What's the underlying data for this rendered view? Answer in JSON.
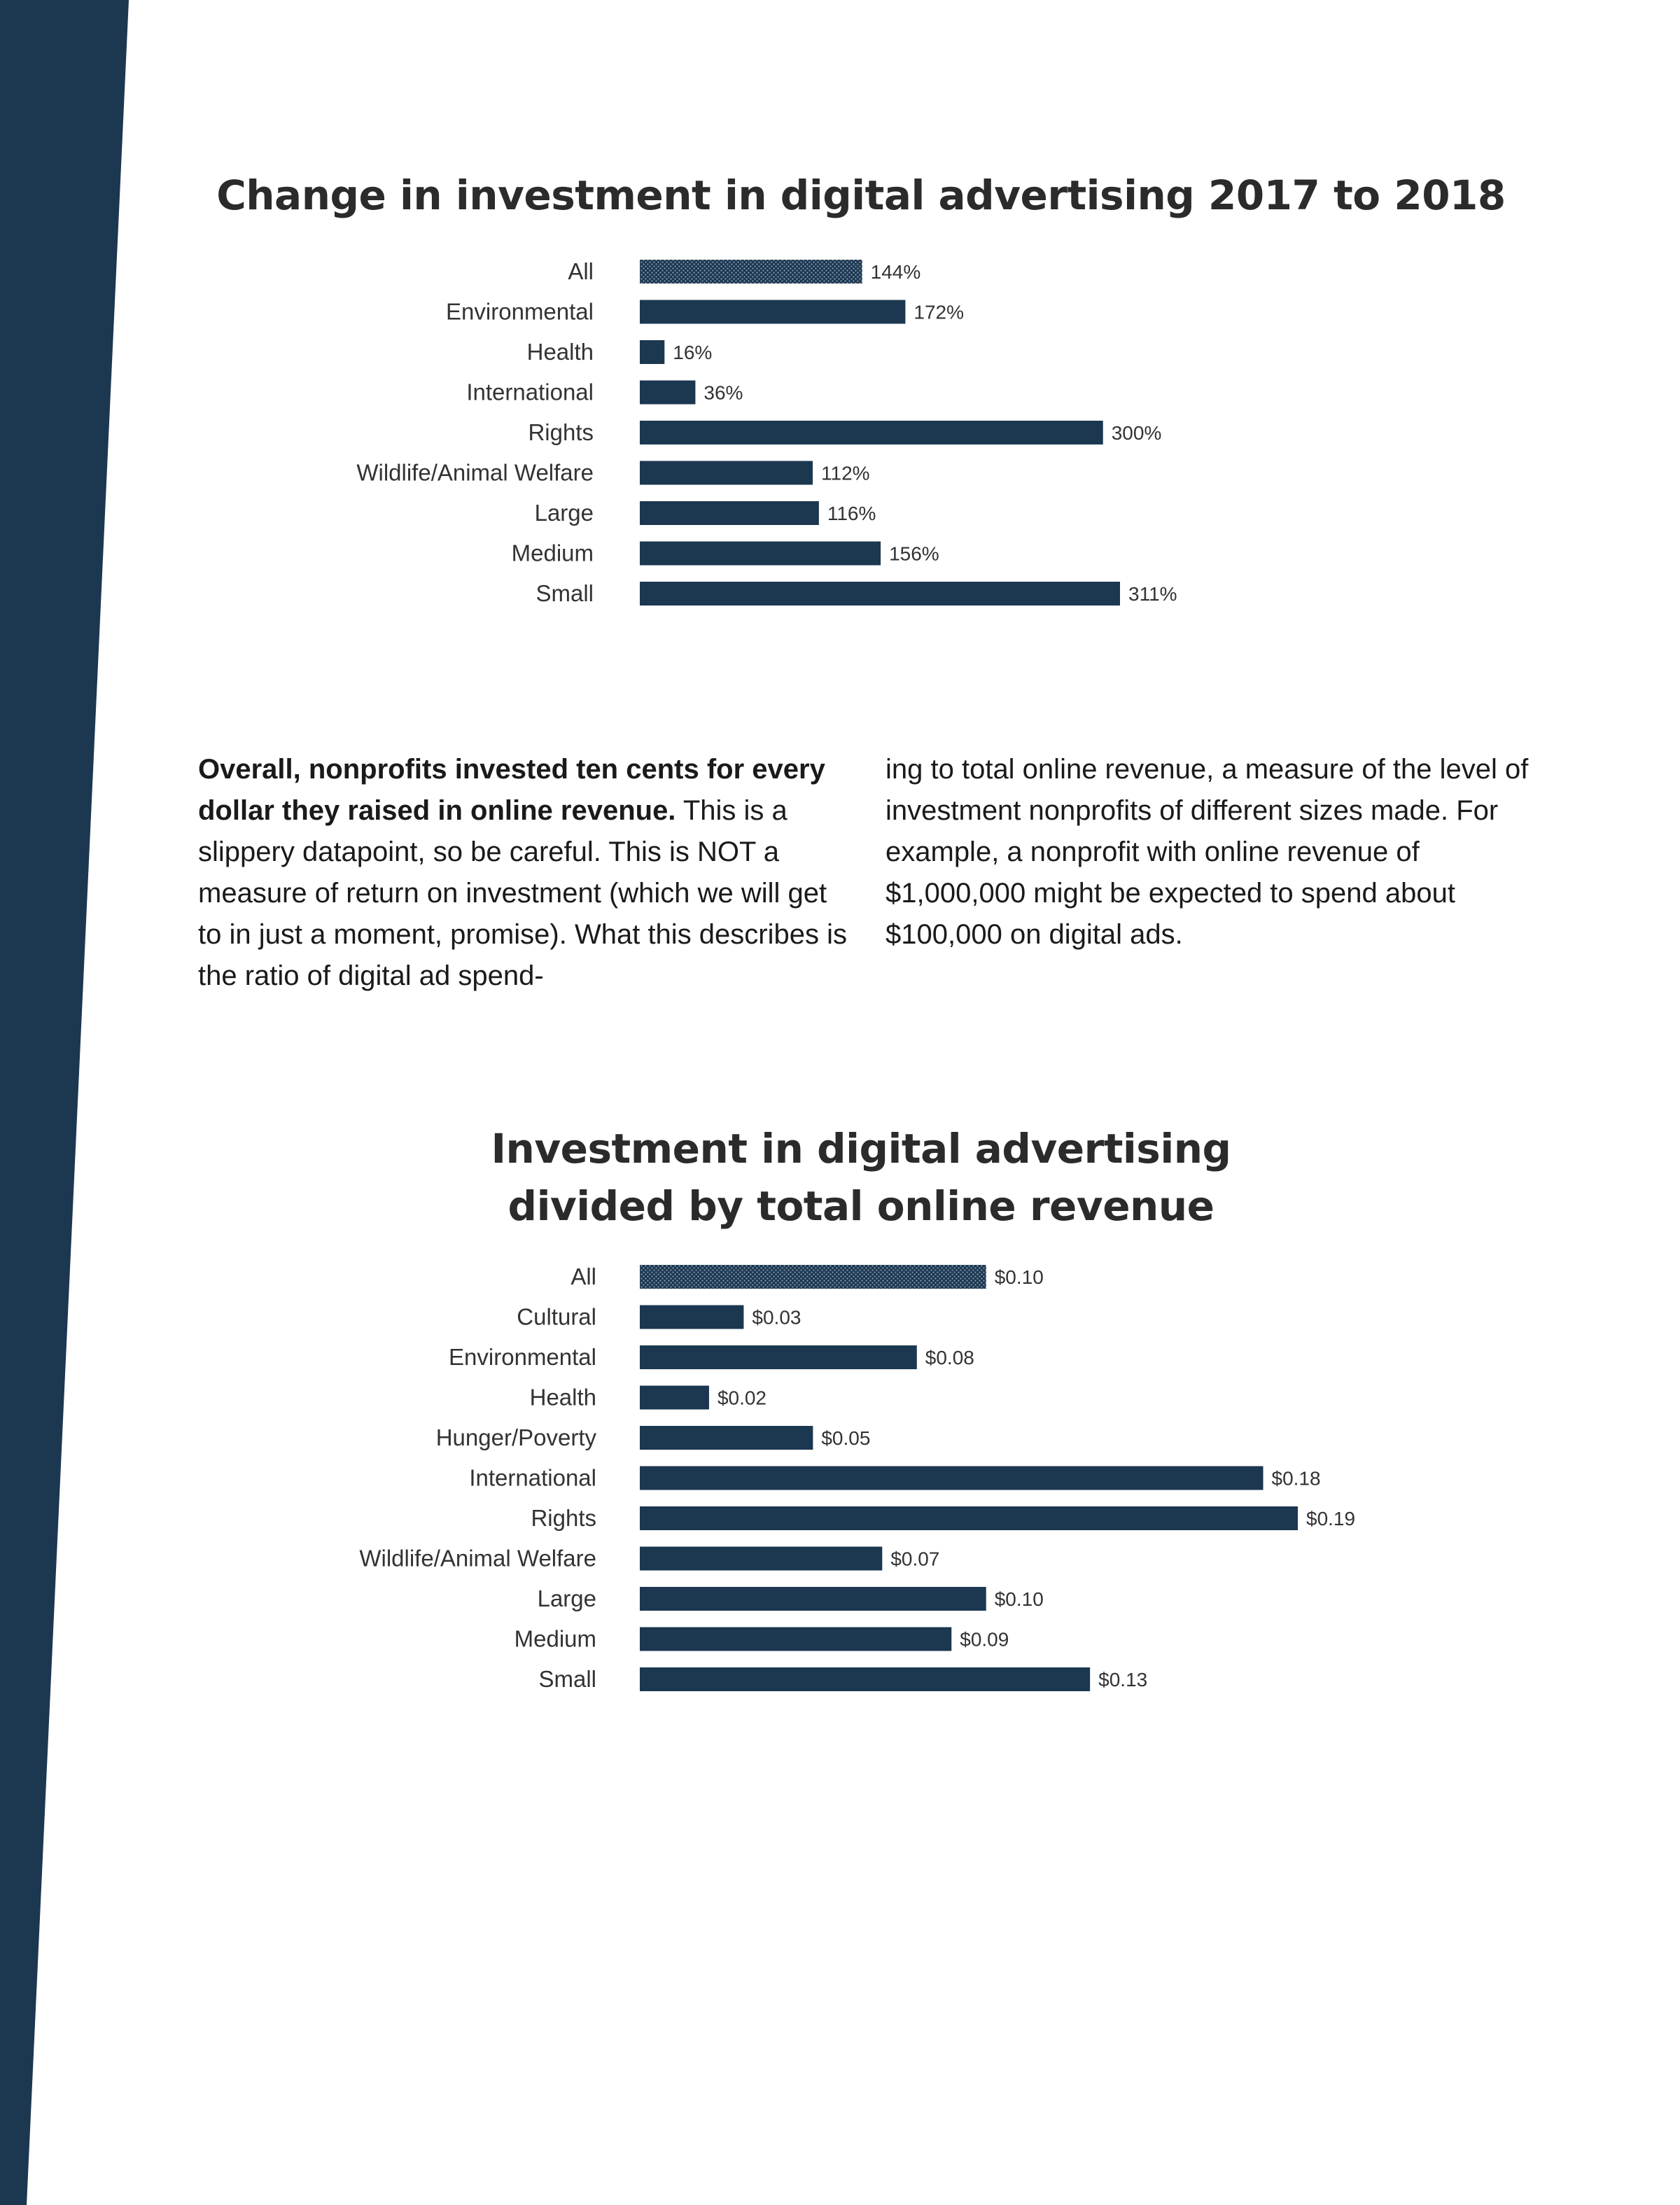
{
  "colors": {
    "band": "#1c3750",
    "bar": "#1c3750",
    "bar_all_pattern": "#8a9fb3"
  },
  "body_text": {
    "lead_bold": "Overall, nonprofits invested ten cents for every dollar they raised in online revenue.",
    "left_rest": "This is a slippery datapoint, so be careful. This is NOT a measure of return on investment (which we will get to in just a moment, promise). What this describes is the ratio of digital ad spend-",
    "right": "ing to total online revenue, a measure of the level of investment nonprofits of different sizes made. For example, a nonprofit with online revenue of $1,000,000 might be expected to spend about $100,000 on digital ads."
  },
  "chart_data": [
    {
      "type": "bar",
      "orientation": "horizontal",
      "title": "Change in investment in digital advertising 2017 to 2018",
      "categories": [
        "All",
        "Environmental",
        "Health",
        "International",
        "Rights",
        "Wildlife/Animal Welfare",
        "Large",
        "Medium",
        "Small"
      ],
      "values": [
        144,
        172,
        16,
        36,
        300,
        112,
        116,
        156,
        311
      ],
      "value_labels": [
        "144%",
        "172%",
        "16%",
        "36%",
        "300%",
        "112%",
        "116%",
        "156%",
        "311%"
      ],
      "unit": "%",
      "patterned_categories": [
        "All"
      ],
      "xlim": [
        0,
        311
      ]
    },
    {
      "type": "bar",
      "orientation": "horizontal",
      "title_lines": [
        "Investment in digital advertising",
        "divided by total online revenue"
      ],
      "categories": [
        "All",
        "Cultural",
        "Environmental",
        "Health",
        "Hunger/Poverty",
        "International",
        "Rights",
        "Wildlife/Animal Welfare",
        "Large",
        "Medium",
        "Small"
      ],
      "values": [
        0.1,
        0.03,
        0.08,
        0.02,
        0.05,
        0.18,
        0.19,
        0.07,
        0.1,
        0.09,
        0.13
      ],
      "value_labels": [
        "$0.10",
        "$0.03",
        "$0.08",
        "$0.02",
        "$0.05",
        "$0.18",
        "$0.19",
        "$0.07",
        "$0.10",
        "$0.09",
        "$0.13"
      ],
      "unit": "$",
      "patterned_categories": [
        "All"
      ],
      "xlim": [
        0,
        0.19
      ]
    }
  ]
}
